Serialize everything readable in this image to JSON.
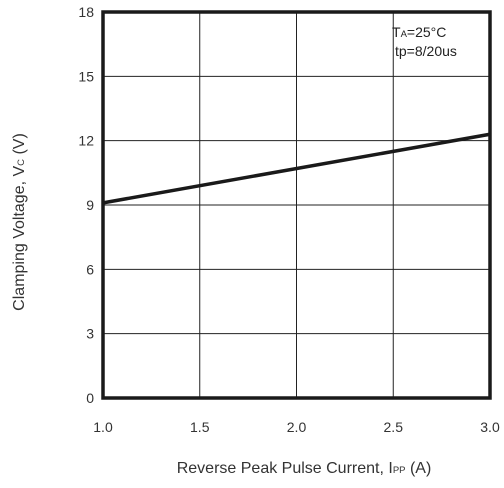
{
  "chart_data": {
    "type": "line",
    "title": "",
    "xlabel": {
      "main": "Reverse Peak Pulse Current, I",
      "sub": "PP",
      "unit": " (A)"
    },
    "ylabel": {
      "main": "Clamping Voltage, V",
      "sub": "C",
      "unit": " (V)"
    },
    "xlim": [
      1.0,
      3.0
    ],
    "ylim": [
      0,
      18
    ],
    "x_ticks": [
      1.0,
      1.5,
      2.0,
      2.5,
      3.0
    ],
    "x_tick_labels": [
      "1.0",
      "1.5",
      "2.0",
      "2.5",
      "3.0"
    ],
    "y_ticks": [
      0,
      3,
      6,
      9,
      12,
      15,
      18
    ],
    "y_tick_labels": [
      "0",
      "3",
      "6",
      "9",
      "12",
      "15",
      "18"
    ],
    "grid": true,
    "series": [
      {
        "x": [
          1.0,
          3.0
        ],
        "values": [
          9.1,
          12.3
        ]
      }
    ],
    "annotations": [
      {
        "main": "T",
        "sub": "A",
        "rest": "=25°C"
      },
      {
        "main": "tp=8/20us"
      }
    ],
    "colors": {
      "line": "#1a1a1a",
      "grid": "#222222",
      "frame": "#1a1a1a"
    }
  }
}
